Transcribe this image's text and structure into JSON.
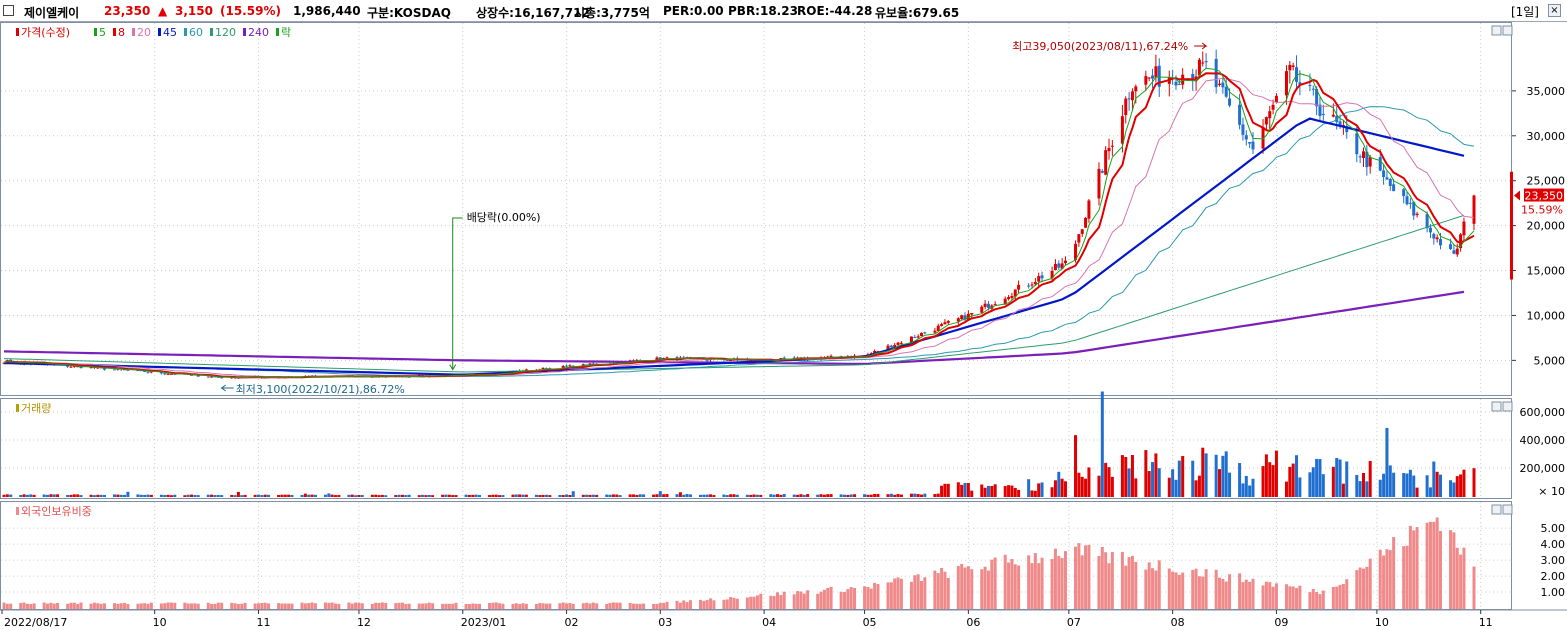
{
  "header": {
    "name": "제이엘케이",
    "price": "23,350",
    "change_arrow": "▲",
    "change": "3,150",
    "change_pct": "(15.59%)",
    "volume": "1,986,440",
    "market": "구분:KOSDAQ",
    "shares": "상장수:16,167,712",
    "market_cap": "시총:3,775억",
    "per": "PER:0.00",
    "pbr": "PBR:18.23",
    "roe": "ROE:-44.28",
    "float_ratio": "유보율:679.65",
    "period": "[1일]"
  },
  "colors": {
    "up": "#e00000",
    "down": "#1f6fd0",
    "ma5": "#1aa31a",
    "ma8": "#e00000",
    "ma20": "#d874b0",
    "ma45": "#0018c8",
    "ma60": "#2a9ab0",
    "ma120": "#2c9c6a",
    "ma240": "#7a1fb8",
    "foreign": "#f08a8a",
    "grid": "#c9cdd2"
  },
  "price_panel": {
    "legend": [
      {
        "label": "가격(수정)",
        "color": "#e00000"
      },
      {
        "label": "5",
        "color": "#1aa31a"
      },
      {
        "label": "8",
        "color": "#e00000"
      },
      {
        "label": "20",
        "color": "#d874b0"
      },
      {
        "label": "45",
        "color": "#0018c8"
      },
      {
        "label": "60",
        "color": "#2a9ab0"
      },
      {
        "label": "120",
        "color": "#2c9c6a"
      },
      {
        "label": "240",
        "color": "#7a1fb8"
      },
      {
        "label": "락",
        "color": "#1aa31a"
      }
    ],
    "y_ticks": [
      "35,000",
      "30,000",
      "25,000",
      "20,000",
      "15,000",
      "10,000",
      "5,000"
    ],
    "y_tick_values": [
      35000,
      30000,
      25000,
      20000,
      15000,
      10000,
      5000
    ],
    "ylim": [
      1700,
      42000
    ],
    "high_annotation": "최고39,050(2023/08/11),67.24%",
    "low_annotation": "최저3,100(2022/10/21),86.72%",
    "dividend_annotation": "배당락(0.00%)",
    "current_price_tag": "23,350",
    "current_pct_tag": "15.59%"
  },
  "volume_panel": {
    "legend": "거래량",
    "y_ticks": [
      "600,000",
      "400,000",
      "200,000"
    ],
    "y_tick_values": [
      600000,
      400000,
      200000
    ],
    "unit": "× 10"
  },
  "foreign_panel": {
    "legend": "외국인보유비중",
    "y_ticks": [
      "5.00",
      "4.00",
      "3.00",
      "2.00",
      "1.00"
    ],
    "y_tick_values": [
      5,
      4,
      3,
      2,
      1
    ]
  },
  "x_axis": {
    "labels": [
      "2022/08/17",
      "10",
      "11",
      "12",
      "2023/01",
      "02",
      "03",
      "04",
      "05",
      "06",
      "07",
      "08",
      "09",
      "10",
      "11"
    ]
  },
  "chart_data": {
    "type": "candlestick",
    "start": "2022/08/17",
    "end": "2023/10/30",
    "price_anchors": [
      {
        "date": "2022/08/17",
        "close": 4900
      },
      {
        "date": "2022/10/21",
        "close": 3100
      },
      {
        "date": "2023/01/02",
        "close": 3300
      },
      {
        "date": "2023/03/01",
        "close": 5200
      },
      {
        "date": "2023/04/01",
        "close": 5000
      },
      {
        "date": "2023/05/01",
        "close": 5500
      },
      {
        "date": "2023/06/01",
        "close": 10000
      },
      {
        "date": "2023/07/01",
        "close": 16000
      },
      {
        "date": "2023/07/20",
        "close": 36000
      },
      {
        "date": "2023/08/11",
        "close": 37500
      },
      {
        "date": "2023/08/25",
        "close": 28500
      },
      {
        "date": "2023/09/05",
        "close": 37000
      },
      {
        "date": "2023/10/01",
        "close": 26000
      },
      {
        "date": "2023/10/24",
        "close": 16500
      },
      {
        "date": "2023/10/30",
        "close": 23350
      }
    ],
    "moving_average_anchors": {
      "ma45": [
        {
          "date": "2022/08/17",
          "value": 4700
        },
        {
          "date": "2023/01/01",
          "value": 3400
        },
        {
          "date": "2023/05/01",
          "value": 5400
        },
        {
          "date": "2023/07/01",
          "value": 12000
        },
        {
          "date": "2023/09/10",
          "value": 32000
        },
        {
          "date": "2023/10/30",
          "value": 27500
        }
      ],
      "ma120": [
        {
          "date": "2022/08/17",
          "value": 5200
        },
        {
          "date": "2023/01/01",
          "value": 3700
        },
        {
          "date": "2023/05/01",
          "value": 4500
        },
        {
          "date": "2023/07/01",
          "value": 7000
        },
        {
          "date": "2023/10/30",
          "value": 21500
        }
      ],
      "ma240": [
        {
          "date": "2022/08/17",
          "value": 6000
        },
        {
          "date": "2023/01/01",
          "value": 5000
        },
        {
          "date": "2023/05/01",
          "value": 4600
        },
        {
          "date": "2023/07/01",
          "value": 5800
        },
        {
          "date": "2023/10/30",
          "value": 12800
        }
      ]
    },
    "volume_anchors": [
      {
        "date": "2023/07/05",
        "value": 330000
      },
      {
        "date": "2023/07/25",
        "value": 610000
      },
      {
        "date": "2023/10/30",
        "value": 198644
      }
    ],
    "foreign_ratio_anchors": [
      {
        "date": "2022/08/17",
        "value": 0.3
      },
      {
        "date": "2023/03/01",
        "value": 0.3
      },
      {
        "date": "2023/05/01",
        "value": 1.3
      },
      {
        "date": "2023/07/01",
        "value": 3.6
      },
      {
        "date": "2023/09/15",
        "value": 1.0
      },
      {
        "date": "2023/10/20",
        "value": 5.8
      },
      {
        "date": "2023/10/30",
        "value": 2.4
      }
    ]
  }
}
